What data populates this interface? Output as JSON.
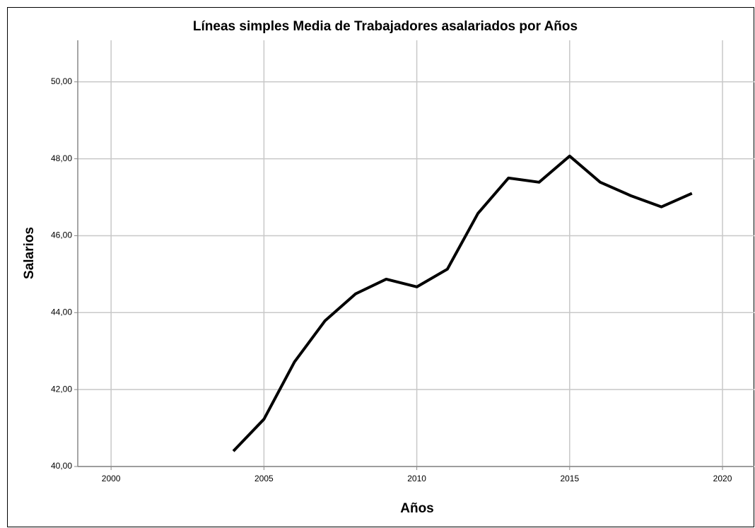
{
  "chart_data": {
    "type": "line",
    "title": "Líneas simples Media de Trabajadores asalariados por Años",
    "x_label": "Años",
    "y_label": "Salarios",
    "x": [
      2004,
      2005,
      2006,
      2007,
      2008,
      2009,
      2010,
      2011,
      2012,
      2013,
      2014,
      2015,
      2016,
      2017,
      2018,
      2019
    ],
    "series": [
      {
        "color": "#000000",
        "values": [
          40.4,
          41.23,
          42.72,
          43.79,
          44.49,
          44.87,
          44.67,
          45.13,
          46.58,
          47.5,
          47.39,
          48.07,
          47.39,
          47.04,
          46.75,
          47.1
        ]
      }
    ],
    "xlim": [
      1998.91,
      2021.04
    ],
    "xticks": [
      2000,
      2005,
      2010,
      2015,
      2020
    ],
    "ylim": [
      40,
      51.08
    ],
    "yticks": [
      {
        "value": 40,
        "label": "40,00"
      },
      {
        "value": 42,
        "label": "42,00"
      },
      {
        "value": 44,
        "label": "44,00"
      },
      {
        "value": 46,
        "label": "46,00"
      },
      {
        "value": 48,
        "label": "48,00"
      },
      {
        "value": 50,
        "label": "50,00"
      }
    ],
    "grid": true
  }
}
